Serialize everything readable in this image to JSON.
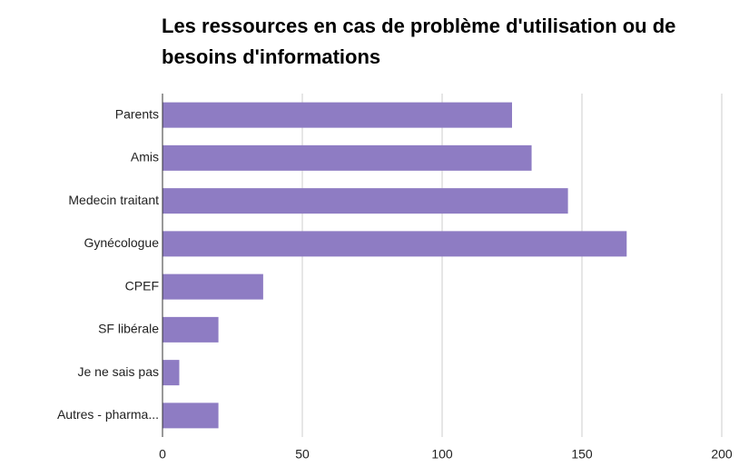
{
  "chart_data": {
    "type": "bar",
    "orientation": "horizontal",
    "title": "Les ressources en cas de problème d'utilisation ou de besoins d'informations",
    "categories": [
      "Parents",
      "Amis",
      "Medecin traitant",
      "Gynécologue",
      "CPEF",
      "SF libérale",
      "Je ne sais pas",
      "Autres - pharma..."
    ],
    "values": [
      125,
      132,
      145,
      166,
      36,
      20,
      6,
      20
    ],
    "color": "#8e7cc3",
    "xlim": [
      0,
      200
    ],
    "xticks": [
      0,
      50,
      100,
      150,
      200
    ],
    "grid": true
  }
}
